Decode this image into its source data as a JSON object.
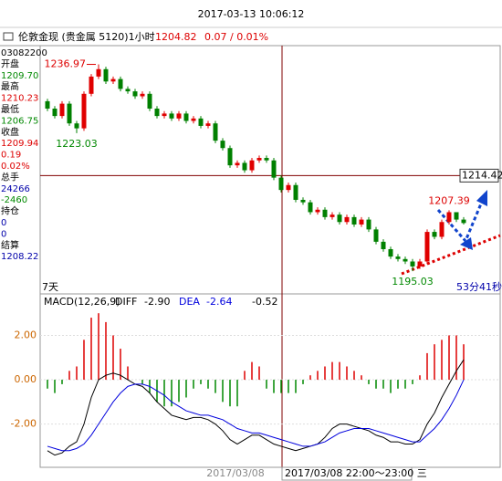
{
  "header": {
    "datetime": "2017-03-13 10:06:12"
  },
  "sidebar": [
    "03082200",
    "开盘",
    "1209.70",
    "最高",
    "1210.23",
    "最低",
    "1206.75",
    "收盘",
    "1209.94",
    "0.19",
    "0.02%",
    "总手",
    "24266",
    "-2460",
    "持仓",
    "0",
    "0",
    "结算",
    "1208.22"
  ],
  "chart_data": [
    {
      "type": "candlestick",
      "title": "伦敦金现 (贵金属 5120)1小时",
      "last_price": "1204.82",
      "change": "0.07 / 0.01%",
      "ylim": [
        1190.8,
        1240.4
      ],
      "up_color": "#e00000",
      "down_color": "#008000",
      "candles": [
        [
          1229.5,
          1230.0,
          1227.5,
          1228.0
        ],
        [
          1228.0,
          1228.5,
          1226.0,
          1226.5
        ],
        [
          1226.5,
          1229.5,
          1226.0,
          1229.0
        ],
        [
          1229.0,
          1229.5,
          1224.5,
          1225.0
        ],
        [
          1225.0,
          1225.5,
          1223.03,
          1224.0
        ],
        [
          1224.0,
          1231.5,
          1223.5,
          1231.0
        ],
        [
          1231.0,
          1235.0,
          1230.5,
          1234.5
        ],
        [
          1234.5,
          1236.97,
          1234.0,
          1236.0
        ],
        [
          1236.0,
          1236.5,
          1233.0,
          1233.5
        ],
        [
          1233.5,
          1234.5,
          1233.0,
          1234.0
        ],
        [
          1234.0,
          1234.5,
          1231.5,
          1232.0
        ],
        [
          1232.0,
          1232.5,
          1231.0,
          1231.5
        ],
        [
          1231.5,
          1232.0,
          1230.0,
          1230.5
        ],
        [
          1230.5,
          1231.5,
          1230.0,
          1231.0
        ],
        [
          1231.0,
          1231.5,
          1227.5,
          1228.0
        ],
        [
          1228.0,
          1228.5,
          1226.0,
          1226.5
        ],
        [
          1226.5,
          1227.5,
          1226.0,
          1227.0
        ],
        [
          1227.0,
          1227.5,
          1225.5,
          1226.0
        ],
        [
          1226.0,
          1227.5,
          1225.5,
          1227.0
        ],
        [
          1227.0,
          1227.5,
          1225.0,
          1225.5
        ],
        [
          1225.5,
          1226.5,
          1225.0,
          1226.0
        ],
        [
          1226.0,
          1226.5,
          1224.0,
          1224.5
        ],
        [
          1224.5,
          1225.5,
          1224.0,
          1225.0
        ],
        [
          1225.0,
          1225.5,
          1221.0,
          1221.5
        ],
        [
          1221.5,
          1222.0,
          1219.5,
          1220.0
        ],
        [
          1220.0,
          1220.5,
          1216.0,
          1216.5
        ],
        [
          1216.5,
          1217.5,
          1216.0,
          1217.0
        ],
        [
          1217.0,
          1217.5,
          1215.0,
          1215.5
        ],
        [
          1215.5,
          1218.0,
          1215.0,
          1217.5
        ],
        [
          1217.5,
          1218.5,
          1217.0,
          1218.0
        ],
        [
          1218.0,
          1218.5,
          1217.0,
          1217.5
        ],
        [
          1217.5,
          1218.0,
          1213.5,
          1214.0
        ],
        [
          1214.0,
          1214.5,
          1211.0,
          1211.5
        ],
        [
          1211.5,
          1213.0,
          1211.0,
          1212.5
        ],
        [
          1212.5,
          1213.0,
          1209.0,
          1209.5
        ],
        [
          1209.5,
          1210.0,
          1208.5,
          1209.0
        ],
        [
          1209.0,
          1209.5,
          1206.5,
          1207.0
        ],
        [
          1207.0,
          1208.0,
          1206.5,
          1207.5
        ],
        [
          1207.5,
          1208.0,
          1205.5,
          1206.0
        ],
        [
          1206.0,
          1207.0,
          1205.5,
          1206.5
        ],
        [
          1206.5,
          1207.0,
          1204.5,
          1205.0
        ],
        [
          1205.0,
          1206.5,
          1204.5,
          1206.0
        ],
        [
          1206.0,
          1206.5,
          1204.0,
          1204.5
        ],
        [
          1204.5,
          1206.0,
          1204.0,
          1205.5
        ],
        [
          1205.5,
          1206.0,
          1203.0,
          1203.5
        ],
        [
          1203.5,
          1204.0,
          1200.5,
          1201.0
        ],
        [
          1201.0,
          1201.5,
          1199.0,
          1199.5
        ],
        [
          1199.5,
          1200.0,
          1197.5,
          1198.0
        ],
        [
          1198.0,
          1198.5,
          1197.0,
          1197.5
        ],
        [
          1197.5,
          1198.0,
          1196.5,
          1197.0
        ],
        [
          1197.0,
          1197.5,
          1195.03,
          1196.0
        ],
        [
          1196.0,
          1197.5,
          1195.5,
          1197.0
        ],
        [
          1197.0,
          1203.5,
          1196.5,
          1203.0
        ],
        [
          1203.0,
          1203.5,
          1201.5,
          1202.0
        ],
        [
          1202.0,
          1205.5,
          1201.5,
          1205.0
        ],
        [
          1205.0,
          1207.39,
          1204.5,
          1207.0
        ],
        [
          1207.0,
          1207.0,
          1205.0,
          1205.5
        ],
        [
          1205.5,
          1206.0,
          1204.5,
          1204.8
        ]
      ],
      "annotations": [
        1236.97,
        1223.03,
        1195.03,
        1207.39
      ],
      "crosshair_price": 1214.42,
      "period_label": "7天",
      "countdown": "53分41秒"
    },
    {
      "type": "macd",
      "title": "MACD(12,26,9)",
      "readout": [
        "-2.90",
        "-2.64",
        "-0.52"
      ],
      "ylim": [
        -3.95,
        3.79
      ],
      "yticks": [
        {
          "value": 2,
          "label": "2.00"
        },
        {
          "value": 0,
          "label": "0.00"
        },
        {
          "value": -2,
          "label": "-2.00"
        }
      ],
      "histogram": [
        -0.4,
        -0.6,
        -0.2,
        0.4,
        0.6,
        1.8,
        2.8,
        3.0,
        2.6,
        2.0,
        1.4,
        0.6,
        0.0,
        -0.2,
        -0.6,
        -1.0,
        -1.2,
        -1.2,
        -1.0,
        -0.8,
        -0.4,
        -0.2,
        -0.4,
        -0.6,
        -1.0,
        -1.2,
        -1.2,
        0.4,
        0.8,
        0.6,
        -0.4,
        -0.6,
        -0.6,
        -0.6,
        -0.6,
        -0.2,
        0.2,
        0.4,
        0.6,
        0.8,
        0.8,
        0.6,
        0.4,
        0.2,
        -0.2,
        -0.4,
        -0.4,
        -0.6,
        -0.4,
        -0.4,
        -0.2,
        0.2,
        1.2,
        1.6,
        1.8,
        2.0,
        2.0,
        1.6
      ],
      "series": [
        {
          "name": "DIFF",
          "color": "#000000",
          "values": [
            -3.2,
            -3.4,
            -3.3,
            -3.0,
            -2.8,
            -2.0,
            -0.8,
            0.0,
            0.2,
            0.3,
            0.2,
            0.0,
            -0.2,
            -0.3,
            -0.6,
            -1.0,
            -1.3,
            -1.6,
            -1.7,
            -1.8,
            -1.7,
            -1.7,
            -1.8,
            -2.0,
            -2.3,
            -2.7,
            -2.9,
            -2.7,
            -2.5,
            -2.5,
            -2.7,
            -2.9,
            -3.0,
            -3.1,
            -3.2,
            -3.1,
            -3.0,
            -2.9,
            -2.6,
            -2.2,
            -2.0,
            -2.0,
            -2.1,
            -2.2,
            -2.3,
            -2.5,
            -2.6,
            -2.8,
            -2.8,
            -2.9,
            -2.9,
            -2.7,
            -2.0,
            -1.5,
            -0.8,
            -0.2,
            0.4,
            0.9
          ]
        },
        {
          "name": "DEA",
          "color": "#0000dd",
          "values": [
            -3.0,
            -3.1,
            -3.2,
            -3.2,
            -3.1,
            -2.9,
            -2.5,
            -2.0,
            -1.5,
            -1.0,
            -0.6,
            -0.3,
            -0.2,
            -0.2,
            -0.3,
            -0.5,
            -0.7,
            -1.0,
            -1.2,
            -1.4,
            -1.5,
            -1.6,
            -1.6,
            -1.7,
            -1.8,
            -2.0,
            -2.2,
            -2.3,
            -2.4,
            -2.4,
            -2.5,
            -2.6,
            -2.7,
            -2.8,
            -2.9,
            -3.0,
            -3.0,
            -2.9,
            -2.8,
            -2.6,
            -2.4,
            -2.3,
            -2.2,
            -2.2,
            -2.2,
            -2.3,
            -2.4,
            -2.5,
            -2.6,
            -2.7,
            -2.8,
            -2.8,
            -2.5,
            -2.2,
            -1.8,
            -1.3,
            -0.7,
            0.0
          ]
        }
      ],
      "x_labels": [
        "2017/03/08",
        "2017/03/08 22:00～23:00 三"
      ]
    }
  ]
}
